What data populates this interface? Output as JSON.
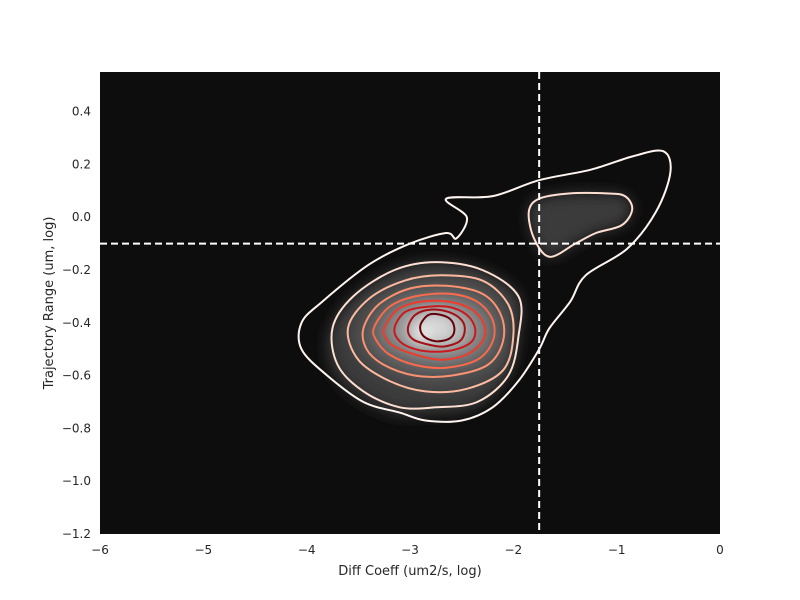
{
  "chart_data": {
    "type": "kde-contour",
    "title": "",
    "xlabel": "Diff Coeff (um2/s, log)",
    "ylabel": "Trajectory Range (um, log)",
    "xlim": [
      -6,
      0
    ],
    "ylim": [
      -1.2,
      0.55
    ],
    "x_ticks": [
      -6,
      -5,
      -4,
      -3,
      -2,
      -1,
      0
    ],
    "x_tick_labels": [
      "−6",
      "−5",
      "−4",
      "−3",
      "−2",
      "−1",
      "0"
    ],
    "y_ticks": [
      -1.2,
      -1.0,
      -0.8,
      -0.6,
      -0.4,
      -0.2,
      0.0,
      0.2,
      0.4
    ],
    "y_tick_labels": [
      "−1.2",
      "−1.0",
      "−0.8",
      "−0.6",
      "−0.4",
      "−0.2",
      "0.0",
      "0.2",
      "0.4"
    ],
    "grid": false,
    "background_color": "#0d0d0d",
    "threshold_lines": {
      "vertical_x": -1.75,
      "horizontal_y": -0.1,
      "color": "#ffffff",
      "style": "dashed"
    },
    "filled_density_peak": {
      "x": -2.85,
      "y": -0.43
    },
    "contour_colors": [
      "#fff5f0",
      "#fee0d2",
      "#fcbba1",
      "#fc9272",
      "#fb6a4a",
      "#ef3b2c",
      "#cb181d",
      "#a50f15",
      "#67000d"
    ],
    "contours": [
      {
        "level": 1,
        "points": [
          [
            -4.05,
            -0.4
          ],
          [
            -3.85,
            -0.32
          ],
          [
            -3.4,
            -0.18
          ],
          [
            -3.0,
            -0.1
          ],
          [
            -2.65,
            -0.06
          ],
          [
            -2.55,
            -0.08
          ],
          [
            -2.45,
            0.0
          ],
          [
            -2.65,
            0.07
          ],
          [
            -2.2,
            0.08
          ],
          [
            -1.75,
            0.14
          ],
          [
            -1.25,
            0.18
          ],
          [
            -0.85,
            0.23
          ],
          [
            -0.55,
            0.25
          ],
          [
            -0.48,
            0.17
          ],
          [
            -0.62,
            0.02
          ],
          [
            -0.9,
            -0.12
          ],
          [
            -1.3,
            -0.22
          ],
          [
            -1.45,
            -0.32
          ],
          [
            -1.65,
            -0.42
          ],
          [
            -1.75,
            -0.5
          ],
          [
            -1.95,
            -0.62
          ],
          [
            -2.2,
            -0.72
          ],
          [
            -2.5,
            -0.77
          ],
          [
            -2.85,
            -0.77
          ],
          [
            -3.1,
            -0.74
          ],
          [
            -3.45,
            -0.7
          ],
          [
            -3.8,
            -0.6
          ],
          [
            -4.05,
            -0.5
          ]
        ]
      },
      {
        "level": 2,
        "points": [
          [
            -1.75,
            0.07
          ],
          [
            -1.45,
            0.09
          ],
          [
            -1.1,
            0.09
          ],
          [
            -0.92,
            0.08
          ],
          [
            -0.85,
            0.03
          ],
          [
            -0.95,
            -0.03
          ],
          [
            -1.2,
            -0.06
          ],
          [
            -1.4,
            -0.1
          ],
          [
            -1.65,
            -0.15
          ],
          [
            -1.8,
            -0.08
          ],
          [
            -1.85,
            0.02
          ]
        ]
      },
      {
        "level": 2,
        "points": [
          [
            -3.75,
            -0.42
          ],
          [
            -3.55,
            -0.3
          ],
          [
            -3.15,
            -0.2
          ],
          [
            -2.75,
            -0.17
          ],
          [
            -2.3,
            -0.2
          ],
          [
            -1.95,
            -0.3
          ],
          [
            -1.95,
            -0.45
          ],
          [
            -2.05,
            -0.6
          ],
          [
            -2.35,
            -0.7
          ],
          [
            -2.75,
            -0.72
          ],
          [
            -3.1,
            -0.72
          ],
          [
            -3.45,
            -0.66
          ],
          [
            -3.7,
            -0.56
          ]
        ]
      },
      {
        "level": 3,
        "points": [
          [
            -3.6,
            -0.42
          ],
          [
            -3.4,
            -0.31
          ],
          [
            -3.05,
            -0.24
          ],
          [
            -2.7,
            -0.22
          ],
          [
            -2.3,
            -0.24
          ],
          [
            -2.05,
            -0.33
          ],
          [
            -2.0,
            -0.45
          ],
          [
            -2.1,
            -0.58
          ],
          [
            -2.45,
            -0.65
          ],
          [
            -2.85,
            -0.66
          ],
          [
            -3.2,
            -0.62
          ],
          [
            -3.5,
            -0.54
          ]
        ]
      },
      {
        "level": 4,
        "points": [
          [
            -3.45,
            -0.42
          ],
          [
            -3.3,
            -0.33
          ],
          [
            -3.0,
            -0.27
          ],
          [
            -2.65,
            -0.26
          ],
          [
            -2.3,
            -0.29
          ],
          [
            -2.12,
            -0.37
          ],
          [
            -2.1,
            -0.47
          ],
          [
            -2.25,
            -0.56
          ],
          [
            -2.6,
            -0.6
          ],
          [
            -2.95,
            -0.6
          ],
          [
            -3.25,
            -0.56
          ],
          [
            -3.42,
            -0.5
          ]
        ]
      },
      {
        "level": 5,
        "points": [
          [
            -3.35,
            -0.42
          ],
          [
            -3.2,
            -0.34
          ],
          [
            -2.95,
            -0.3
          ],
          [
            -2.62,
            -0.29
          ],
          [
            -2.35,
            -0.32
          ],
          [
            -2.2,
            -0.39
          ],
          [
            -2.2,
            -0.47
          ],
          [
            -2.35,
            -0.54
          ],
          [
            -2.65,
            -0.57
          ],
          [
            -2.95,
            -0.56
          ],
          [
            -3.2,
            -0.52
          ],
          [
            -3.32,
            -0.47
          ]
        ]
      },
      {
        "level": 6,
        "points": [
          [
            -3.25,
            -0.42
          ],
          [
            -3.12,
            -0.35
          ],
          [
            -2.9,
            -0.32
          ],
          [
            -2.62,
            -0.32
          ],
          [
            -2.4,
            -0.35
          ],
          [
            -2.28,
            -0.41
          ],
          [
            -2.3,
            -0.47
          ],
          [
            -2.45,
            -0.52
          ],
          [
            -2.7,
            -0.54
          ],
          [
            -2.95,
            -0.52
          ],
          [
            -3.15,
            -0.49
          ],
          [
            -3.23,
            -0.46
          ]
        ]
      },
      {
        "level": 7,
        "points": [
          [
            -3.15,
            -0.42
          ],
          [
            -3.05,
            -0.36
          ],
          [
            -2.85,
            -0.34
          ],
          [
            -2.62,
            -0.34
          ],
          [
            -2.45,
            -0.37
          ],
          [
            -2.37,
            -0.42
          ],
          [
            -2.4,
            -0.47
          ],
          [
            -2.55,
            -0.5
          ],
          [
            -2.75,
            -0.51
          ],
          [
            -2.95,
            -0.5
          ],
          [
            -3.1,
            -0.47
          ]
        ]
      },
      {
        "level": 8,
        "points": [
          [
            -3.02,
            -0.42
          ],
          [
            -2.95,
            -0.37
          ],
          [
            -2.8,
            -0.35
          ],
          [
            -2.62,
            -0.36
          ],
          [
            -2.5,
            -0.39
          ],
          [
            -2.47,
            -0.43
          ],
          [
            -2.52,
            -0.47
          ],
          [
            -2.68,
            -0.49
          ],
          [
            -2.85,
            -0.48
          ],
          [
            -2.98,
            -0.46
          ]
        ]
      },
      {
        "level": 9,
        "points": [
          [
            -2.9,
            -0.41
          ],
          [
            -2.82,
            -0.37
          ],
          [
            -2.7,
            -0.37
          ],
          [
            -2.6,
            -0.39
          ],
          [
            -2.57,
            -0.43
          ],
          [
            -2.62,
            -0.46
          ],
          [
            -2.75,
            -0.47
          ],
          [
            -2.87,
            -0.45
          ]
        ]
      }
    ]
  }
}
